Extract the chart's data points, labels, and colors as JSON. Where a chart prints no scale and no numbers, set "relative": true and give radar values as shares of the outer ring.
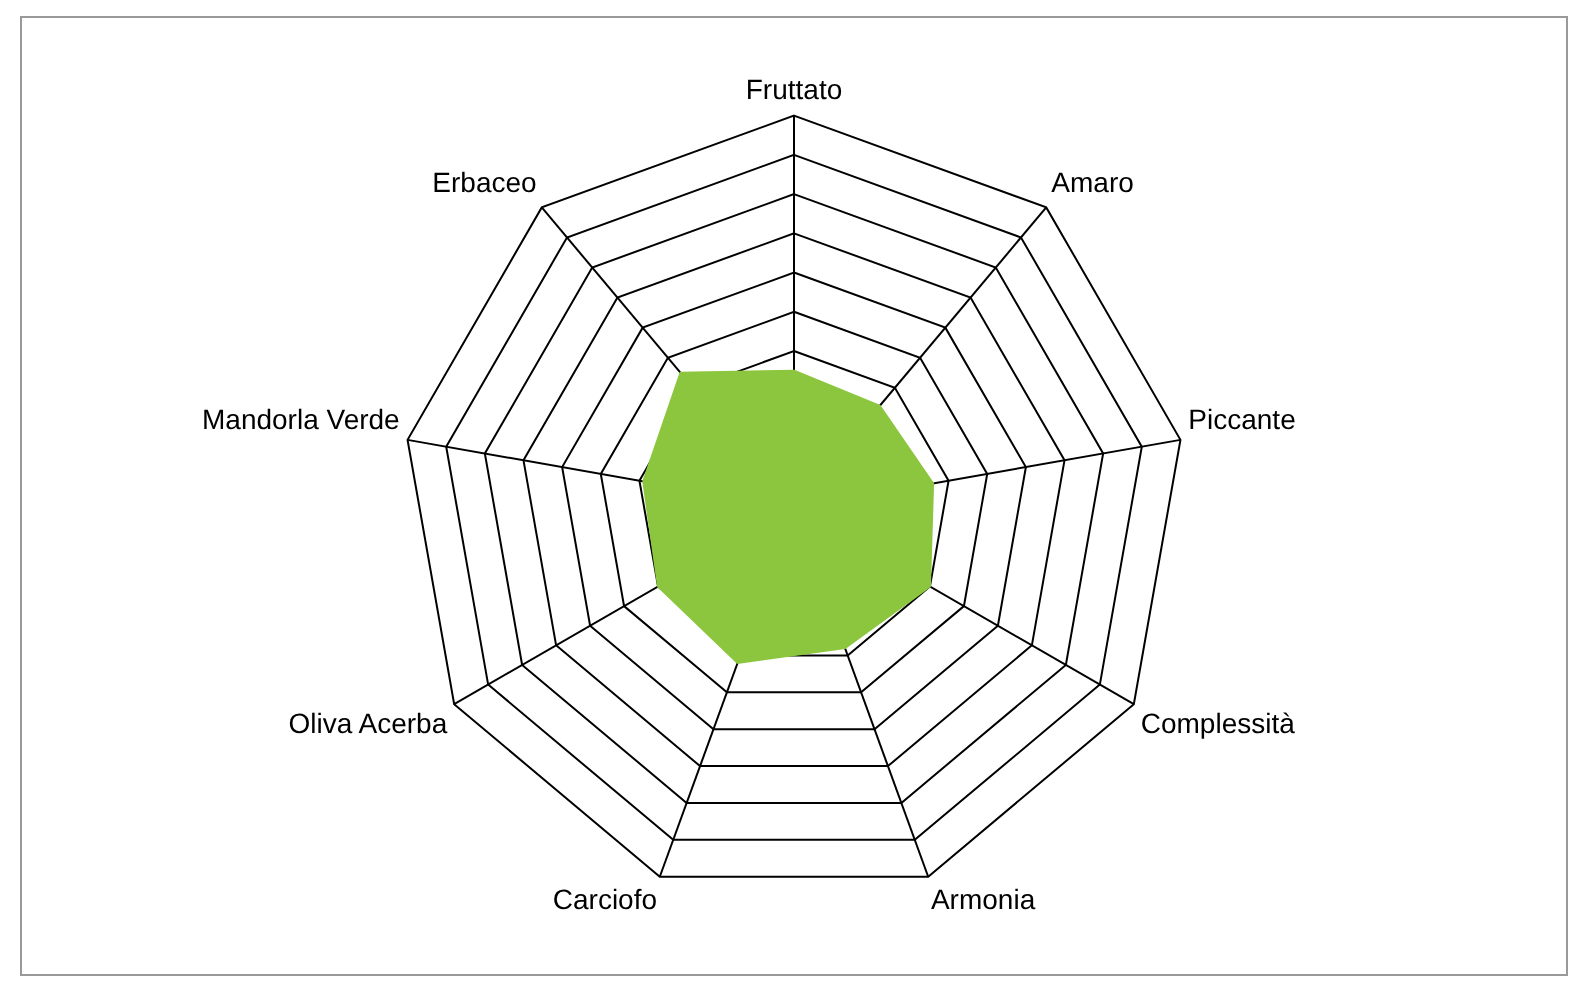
{
  "chart_data": {
    "type": "radar",
    "relative": true,
    "categories": [
      "Fruttato",
      "Amaro",
      "Piccante",
      "Complessità",
      "Armonia",
      "Carciofo",
      "Oliva Acerba",
      "Mandorla Verde",
      "Erbaceo"
    ],
    "series": [
      {
        "color": "#8cc63f",
        "values": [
          0.35,
          0.34,
          0.36,
          0.4,
          0.38,
          0.42,
          0.4,
          0.39,
          0.45
        ]
      }
    ],
    "legend": false
  }
}
